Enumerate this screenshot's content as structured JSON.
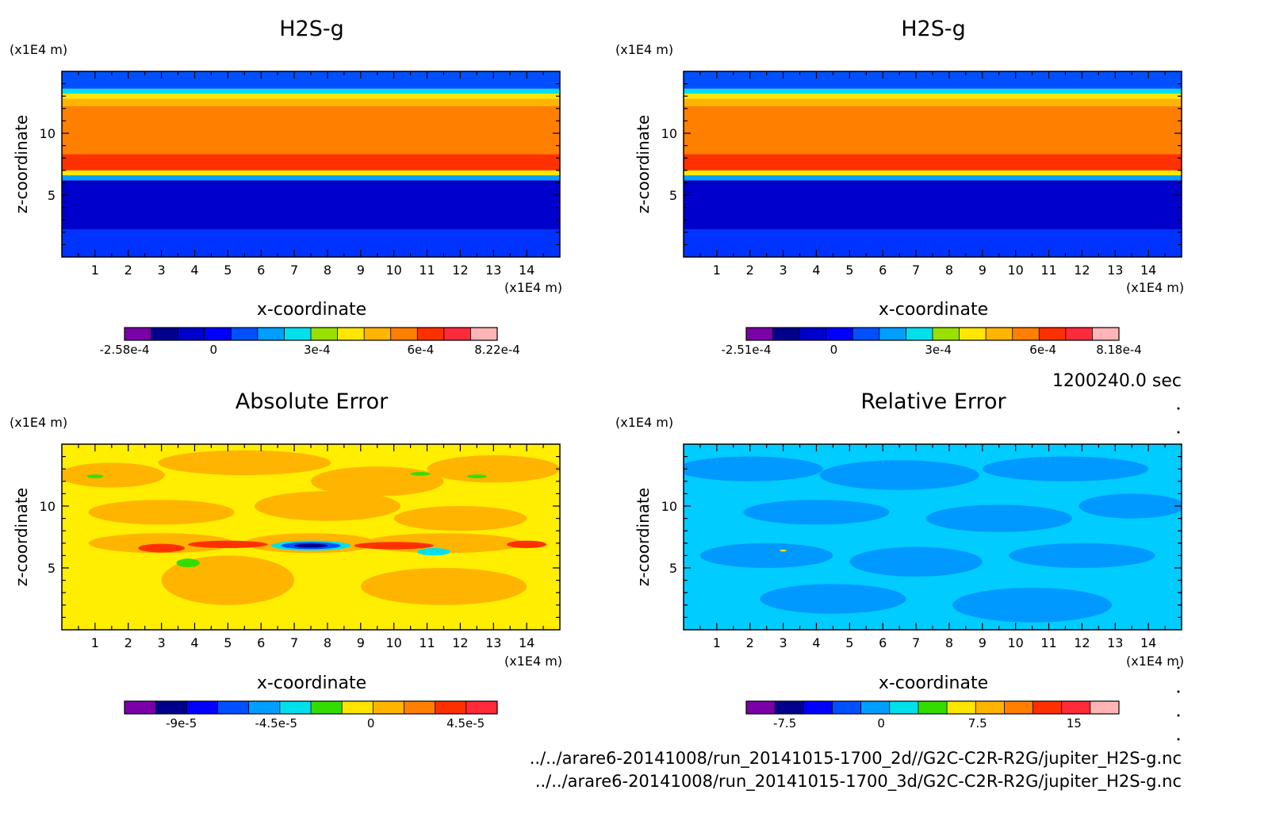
{
  "time_label": "1200240.0 sec",
  "file_paths": [
    "../../arare6-20141008/run_20141015-1700_2d//G2C-C2R-R2G/jupiter_H2S-g.nc",
    "../../arare6-20141008/run_20141015-1700_3d/G2C-C2R-R2G/jupiter_H2S-g.nc"
  ],
  "chart_data": [
    {
      "type": "heatmap",
      "title": "H2S-g",
      "xlabel": "x-coordinate",
      "ylabel": "z-coordinate",
      "x_unit": "(x1E4 m)",
      "y_unit": "(x1E4 m)",
      "xlim": [
        0,
        15
      ],
      "ylim": [
        0,
        15
      ],
      "x_ticks": [
        1,
        2,
        3,
        4,
        5,
        6,
        7,
        8,
        9,
        10,
        11,
        12,
        13,
        14
      ],
      "y_ticks": [
        5,
        10
      ],
      "colorbar": {
        "min": -0.000258,
        "max": 0.000822,
        "tick_values": [
          -0.000258,
          0,
          0.0003,
          0.0006,
          0.000822
        ],
        "tick_labels": [
          "-2.58e-4",
          "0",
          "3e-4",
          "6e-4",
          "8.22e-4"
        ],
        "colors": [
          "#7a00a8",
          "#00008c",
          "#0000cc",
          "#0000ff",
          "#0050ff",
          "#009eff",
          "#00e0ea",
          "#99e000",
          "#ffe600",
          "#ffb400",
          "#ff7f00",
          "#ff3000",
          "#ff2a3a",
          "#ffb5b5"
        ]
      },
      "bands": [
        {
          "z": [
            0,
            2.2
          ],
          "color": "#0033ff"
        },
        {
          "z": [
            2.2,
            6.2
          ],
          "color": "#0000cc"
        },
        {
          "z": [
            6.2,
            6.6
          ],
          "color": "#00a0ff"
        },
        {
          "z": [
            6.6,
            7.0
          ],
          "color": "#ffe600"
        },
        {
          "z": [
            7.0,
            8.3
          ],
          "color": "#ff3000"
        },
        {
          "z": [
            8.3,
            12.2
          ],
          "color": "#ff7f00"
        },
        {
          "z": [
            12.2,
            12.8
          ],
          "color": "#ffb400"
        },
        {
          "z": [
            12.8,
            13.2
          ],
          "color": "#ffe600"
        },
        {
          "z": [
            13.2,
            13.6
          ],
          "color": "#00e0ea"
        },
        {
          "z": [
            13.6,
            14.8
          ],
          "color": "#0050ff"
        }
      ]
    },
    {
      "type": "heatmap",
      "title": "H2S-g",
      "xlabel": "x-coordinate",
      "ylabel": "z-coordinate",
      "x_unit": "(x1E4 m)",
      "y_unit": "(x1E4 m)",
      "xlim": [
        0,
        15
      ],
      "ylim": [
        0,
        15
      ],
      "x_ticks": [
        1,
        2,
        3,
        4,
        5,
        6,
        7,
        8,
        9,
        10,
        11,
        12,
        13,
        14
      ],
      "y_ticks": [
        5,
        10
      ],
      "colorbar": {
        "min": -0.000251,
        "max": 0.000818,
        "tick_values": [
          -0.000251,
          0,
          0.0003,
          0.0006,
          0.000818
        ],
        "tick_labels": [
          "-2.51e-4",
          "0",
          "3e-4",
          "6e-4",
          "8.18e-4"
        ],
        "colors": [
          "#7a00a8",
          "#00008c",
          "#0000cc",
          "#0000ff",
          "#0050ff",
          "#009eff",
          "#00e0ea",
          "#99e000",
          "#ffe600",
          "#ffb400",
          "#ff7f00",
          "#ff3000",
          "#ff2a3a",
          "#ffb5b5"
        ]
      },
      "bands": [
        {
          "z": [
            0,
            2.2
          ],
          "color": "#0033ff"
        },
        {
          "z": [
            2.2,
            6.2
          ],
          "color": "#0000cc"
        },
        {
          "z": [
            6.2,
            6.6
          ],
          "color": "#00a0ff"
        },
        {
          "z": [
            6.6,
            7.0
          ],
          "color": "#ffe600"
        },
        {
          "z": [
            7.0,
            8.3
          ],
          "color": "#ff3000"
        },
        {
          "z": [
            8.3,
            12.2
          ],
          "color": "#ff7f00"
        },
        {
          "z": [
            12.2,
            12.8
          ],
          "color": "#ffb400"
        },
        {
          "z": [
            12.8,
            13.2
          ],
          "color": "#ffe600"
        },
        {
          "z": [
            13.2,
            13.6
          ],
          "color": "#00e0ea"
        },
        {
          "z": [
            13.6,
            14.8
          ],
          "color": "#0050ff"
        }
      ]
    },
    {
      "type": "heatmap",
      "title": "Absolute Error",
      "xlabel": "x-coordinate",
      "ylabel": "z-coordinate",
      "x_unit": "(x1E4 m)",
      "y_unit": "(x1E4 m)",
      "xlim": [
        0,
        15
      ],
      "ylim": [
        0,
        15
      ],
      "x_ticks": [
        1,
        2,
        3,
        4,
        5,
        6,
        7,
        8,
        9,
        10,
        11,
        12,
        13,
        14
      ],
      "y_ticks": [
        5,
        10
      ],
      "background": "#ffee00",
      "colorbar": {
        "min": -0.000117,
        "max": 6e-05,
        "tick_values": [
          -9e-05,
          -4.5e-05,
          0,
          4.5e-05
        ],
        "tick_labels": [
          "-9e-5",
          "-4.5e-5",
          "0",
          "4.5e-5"
        ],
        "colors": [
          "#7a00a8",
          "#00008c",
          "#0000ff",
          "#0050ff",
          "#009eff",
          "#00e0ea",
          "#33dd00",
          "#ffe600",
          "#ffb400",
          "#ff7f00",
          "#ff3000",
          "#ff2a3a"
        ]
      },
      "blobs": [
        {
          "x": 1.5,
          "z": 12.5,
          "rx": 1.6,
          "rz": 1.0,
          "color": "#ffb400"
        },
        {
          "x": 5.5,
          "z": 13.5,
          "rx": 2.6,
          "rz": 1.0,
          "color": "#ffb400"
        },
        {
          "x": 9.5,
          "z": 12.0,
          "rx": 2.0,
          "rz": 1.2,
          "color": "#ffb400"
        },
        {
          "x": 13.0,
          "z": 13.0,
          "rx": 2.0,
          "rz": 1.1,
          "color": "#ffb400"
        },
        {
          "x": 3.0,
          "z": 9.5,
          "rx": 2.2,
          "rz": 1.0,
          "color": "#ffb400"
        },
        {
          "x": 8.0,
          "z": 10.0,
          "rx": 2.2,
          "rz": 1.2,
          "color": "#ffb400"
        },
        {
          "x": 12.0,
          "z": 9.0,
          "rx": 2.0,
          "rz": 1.0,
          "color": "#ffb400"
        },
        {
          "x": 5.0,
          "z": 4.0,
          "rx": 2.0,
          "rz": 2.0,
          "color": "#ffb400"
        },
        {
          "x": 11.5,
          "z": 3.5,
          "rx": 2.5,
          "rz": 1.5,
          "color": "#ffb400"
        },
        {
          "x": 3.0,
          "z": 7.0,
          "rx": 2.2,
          "rz": 0.8,
          "color": "#ffb400"
        },
        {
          "x": 7.5,
          "z": 7.0,
          "rx": 2.0,
          "rz": 0.8,
          "color": "#ffb400"
        },
        {
          "x": 11.5,
          "z": 7.0,
          "rx": 2.4,
          "rz": 0.8,
          "color": "#ffb400"
        },
        {
          "x": 3.0,
          "z": 6.6,
          "rx": 0.7,
          "rz": 0.35,
          "color": "#ff3000"
        },
        {
          "x": 5.0,
          "z": 6.9,
          "rx": 1.2,
          "rz": 0.3,
          "color": "#ff3000"
        },
        {
          "x": 10.0,
          "z": 6.8,
          "rx": 1.2,
          "rz": 0.3,
          "color": "#ff3000"
        },
        {
          "x": 14.0,
          "z": 6.9,
          "rx": 0.6,
          "rz": 0.3,
          "color": "#ff3000"
        },
        {
          "x": 7.5,
          "z": 6.8,
          "rx": 1.2,
          "rz": 0.4,
          "color": "#00e0ea"
        },
        {
          "x": 7.5,
          "z": 6.8,
          "rx": 0.9,
          "rz": 0.28,
          "color": "#0050ff"
        },
        {
          "x": 7.5,
          "z": 6.8,
          "rx": 0.5,
          "rz": 0.16,
          "color": "#00008c"
        },
        {
          "x": 11.2,
          "z": 6.3,
          "rx": 0.5,
          "rz": 0.3,
          "color": "#00e0ea"
        },
        {
          "x": 3.8,
          "z": 5.4,
          "rx": 0.35,
          "rz": 0.35,
          "color": "#33dd00"
        },
        {
          "x": 1.0,
          "z": 12.4,
          "rx": 0.25,
          "rz": 0.15,
          "color": "#33dd00"
        },
        {
          "x": 10.8,
          "z": 12.6,
          "rx": 0.3,
          "rz": 0.15,
          "color": "#33dd00"
        },
        {
          "x": 12.5,
          "z": 12.4,
          "rx": 0.3,
          "rz": 0.15,
          "color": "#33dd00"
        }
      ]
    },
    {
      "type": "heatmap",
      "title": "Relative Error",
      "xlabel": "x-coordinate",
      "ylabel": "z-coordinate",
      "x_unit": "(x1E4 m)",
      "y_unit": "(x1E4 m)",
      "xlim": [
        0,
        15
      ],
      "ylim": [
        0,
        15
      ],
      "x_ticks": [
        1,
        2,
        3,
        4,
        5,
        6,
        7,
        8,
        9,
        10,
        11,
        12,
        13,
        14
      ],
      "y_ticks": [
        5,
        10
      ],
      "background": "#00ccff",
      "colorbar": {
        "min": -10.5,
        "max": 18.5,
        "tick_values": [
          -7.5,
          0,
          7.5,
          15
        ],
        "tick_labels": [
          "-7.5",
          "0",
          "7.5",
          "15"
        ],
        "colors": [
          "#7a00a8",
          "#00008c",
          "#0000ff",
          "#0050ff",
          "#009eff",
          "#00e0ea",
          "#33dd00",
          "#ffe600",
          "#ffb400",
          "#ff7f00",
          "#ff3000",
          "#ff2a3a",
          "#ffb5b5"
        ]
      },
      "blobs": [
        {
          "x": 2.0,
          "z": 13.0,
          "rx": 2.2,
          "rz": 1.0,
          "color": "#0099ff"
        },
        {
          "x": 6.5,
          "z": 12.5,
          "rx": 2.4,
          "rz": 1.2,
          "color": "#0099ff"
        },
        {
          "x": 11.5,
          "z": 13.0,
          "rx": 2.5,
          "rz": 1.0,
          "color": "#0099ff"
        },
        {
          "x": 4.0,
          "z": 9.5,
          "rx": 2.2,
          "rz": 1.0,
          "color": "#0099ff"
        },
        {
          "x": 9.5,
          "z": 9.0,
          "rx": 2.2,
          "rz": 1.1,
          "color": "#0099ff"
        },
        {
          "x": 13.5,
          "z": 10.0,
          "rx": 1.6,
          "rz": 1.0,
          "color": "#0099ff"
        },
        {
          "x": 2.5,
          "z": 6.0,
          "rx": 2.0,
          "rz": 1.0,
          "color": "#0099ff"
        },
        {
          "x": 7.0,
          "z": 5.5,
          "rx": 2.0,
          "rz": 1.2,
          "color": "#0099ff"
        },
        {
          "x": 12.0,
          "z": 6.0,
          "rx": 2.2,
          "rz": 1.0,
          "color": "#0099ff"
        },
        {
          "x": 4.5,
          "z": 2.5,
          "rx": 2.2,
          "rz": 1.2,
          "color": "#0099ff"
        },
        {
          "x": 10.5,
          "z": 2.0,
          "rx": 2.4,
          "rz": 1.4,
          "color": "#0099ff"
        },
        {
          "x": 3.0,
          "z": 6.4,
          "rx": 0.1,
          "rz": 0.08,
          "color": "#ffe600"
        }
      ]
    }
  ]
}
